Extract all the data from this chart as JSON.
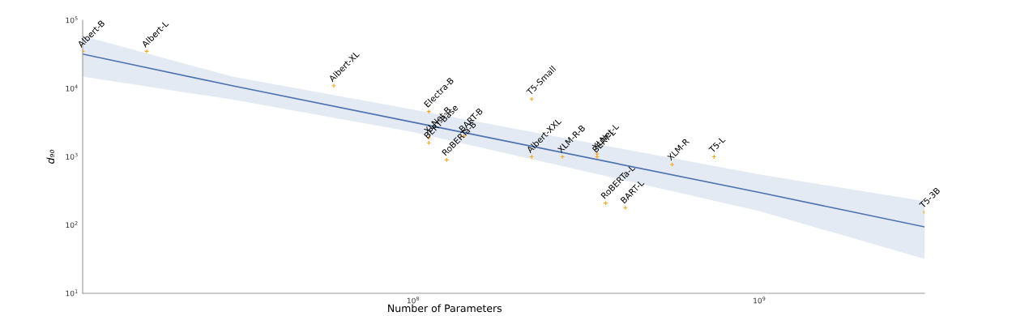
{
  "chart_data": {
    "type": "scatter",
    "xlabel": "Number of Parameters",
    "ylabel": "d₉₀",
    "log": "xy",
    "grid": false,
    "legend": false,
    "xlim": [
      11100000,
      3000000000
    ],
    "ylim": [
      10,
      100000
    ],
    "xticks": [
      {
        "value": 100000000,
        "label": "10$^{8}$"
      },
      {
        "value": 1000000000,
        "label": "10$^{9}$"
      }
    ],
    "yticks": [
      {
        "value": 10,
        "label": "10$^{1}$"
      },
      {
        "value": 100,
        "label": "10$^{2}$"
      },
      {
        "value": 1000,
        "label": "10$^{3}$"
      },
      {
        "value": 10000,
        "label": "10$^{4}$"
      },
      {
        "value": 100000,
        "label": "10$^{5}$"
      }
    ],
    "series": [
      {
        "type": "line",
        "color": "#4c72b0",
        "x": [
          11100000,
          30000000,
          100000000,
          1000000000,
          3000000000
        ],
        "values": [
          32000,
          11000,
          3200,
          300,
          94
        ],
        "lower": [
          15000,
          6900,
          2300,
          160,
          32
        ],
        "upper": [
          59000,
          15000,
          4900,
          550,
          224
        ]
      },
      {
        "color": "#f5a623",
        "marker": "cross",
        "x": [
          11100000,
          17000000,
          59000000,
          111000000,
          111000000,
          111000000,
          125000000,
          140000000,
          220000000,
          220000000,
          270000000,
          340000000,
          340000000,
          360000000,
          410000000,
          560000000,
          740000000,
          3000000000
        ],
        "values": [
          35000,
          35000,
          11000,
          4600,
          1900,
          1600,
          900,
          2000,
          7000,
          1000,
          1000,
          1100,
          1000,
          210,
          180,
          770,
          1000,
          155
        ],
        "value_labels": [
          "Albert-B",
          "Albert-L",
          "Albert-XL",
          "Electra-B",
          "XLNet-B",
          "BERT-Base",
          "RoBERTa-B",
          "BART-B",
          "T5-Small",
          "Albert-XXL",
          "XLM-R-B",
          "XLNet-L",
          "BERT-L",
          "RoBERTa-L",
          "BART-L",
          "XLM-R",
          "T5-L",
          "T5-3B"
        ]
      }
    ]
  }
}
